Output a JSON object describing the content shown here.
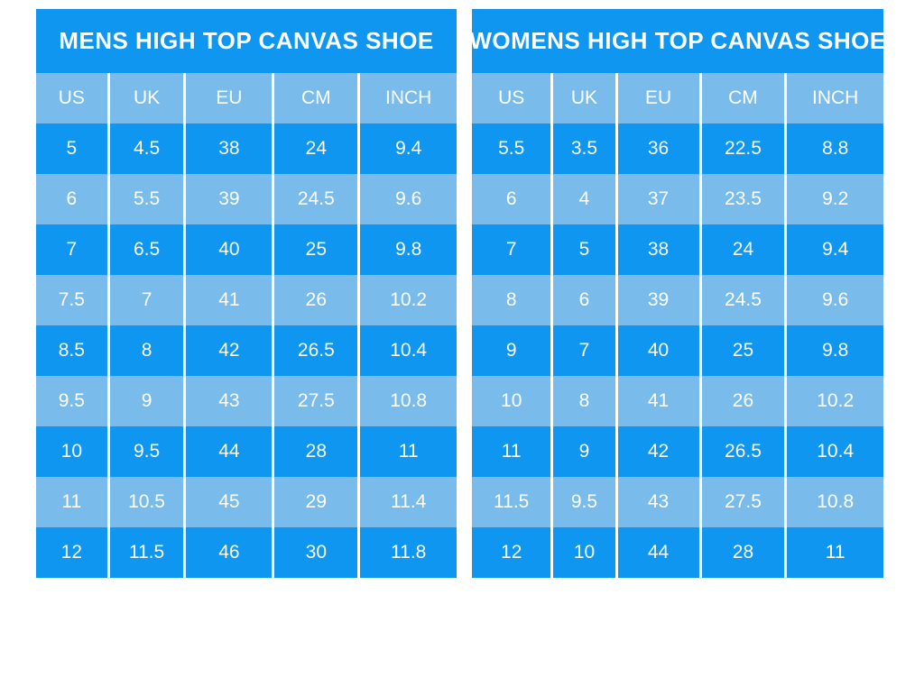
{
  "colors": {
    "dark_blue": "#0e96f0",
    "light_blue": "#79bcec",
    "separator": "#ffffff",
    "text": "#ffffff",
    "page_background": "#ffffff"
  },
  "chart_data": [
    {
      "type": "table",
      "title": "MENS HIGH TOP CANVAS SHOE",
      "columns": [
        "US",
        "UK",
        "EU",
        "CM",
        "INCH"
      ],
      "rows": [
        [
          "5",
          "4.5",
          "38",
          "24",
          "9.4"
        ],
        [
          "6",
          "5.5",
          "39",
          "24.5",
          "9.6"
        ],
        [
          "7",
          "6.5",
          "40",
          "25",
          "9.8"
        ],
        [
          "7.5",
          "7",
          "41",
          "26",
          "10.2"
        ],
        [
          "8.5",
          "8",
          "42",
          "26.5",
          "10.4"
        ],
        [
          "9.5",
          "9",
          "43",
          "27.5",
          "10.8"
        ],
        [
          "10",
          "9.5",
          "44",
          "28",
          "11"
        ],
        [
          "11",
          "10.5",
          "45",
          "29",
          "11.4"
        ],
        [
          "12",
          "11.5",
          "46",
          "30",
          "11.8"
        ]
      ],
      "layout_hints": {
        "row_striping": "alternating dark/light starting dark",
        "header_background": "light_blue",
        "title_background": "dark_blue"
      }
    },
    {
      "type": "table",
      "title": "WOMENS HIGH TOP CANVAS SHOE",
      "columns": [
        "US",
        "UK",
        "EU",
        "CM",
        "INCH"
      ],
      "rows": [
        [
          "5.5",
          "3.5",
          "36",
          "22.5",
          "8.8"
        ],
        [
          "6",
          "4",
          "37",
          "23.5",
          "9.2"
        ],
        [
          "7",
          "5",
          "38",
          "24",
          "9.4"
        ],
        [
          "8",
          "6",
          "39",
          "24.5",
          "9.6"
        ],
        [
          "9",
          "7",
          "40",
          "25",
          "9.8"
        ],
        [
          "10",
          "8",
          "41",
          "26",
          "10.2"
        ],
        [
          "11",
          "9",
          "42",
          "26.5",
          "10.4"
        ],
        [
          "11.5",
          "9.5",
          "43",
          "27.5",
          "10.8"
        ],
        [
          "12",
          "10",
          "44",
          "28",
          "11"
        ]
      ],
      "layout_hints": {
        "row_striping": "alternating dark/light starting dark",
        "header_background": "light_blue",
        "title_background": "dark_blue"
      }
    }
  ]
}
